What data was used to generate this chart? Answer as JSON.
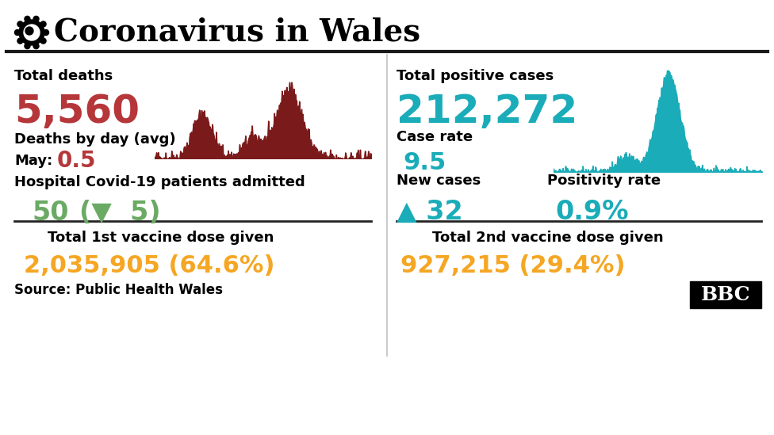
{
  "title": "Coronavirus in Wales",
  "bg_color": "#ffffff",
  "title_color": "#000000",
  "left_panel": {
    "total_deaths_label": "Total deaths",
    "total_deaths_value": "5,560",
    "total_deaths_color": "#b5373a",
    "deaths_by_day_label": "Deaths by day (avg)",
    "may_label": "May:",
    "may_value": "0.5",
    "may_value_color": "#b5373a",
    "hospital_label": "Hospital Covid-19 patients admitted",
    "hospital_value": "50",
    "hospital_value_color": "#6aaa64",
    "hospital_change_text": "(▼  5)",
    "hospital_change_color": "#6aaa64",
    "vaccine1_label": "Total 1st vaccine dose given",
    "vaccine1_value": "2,035,905 (64.6%)",
    "vaccine1_color": "#f5a623"
  },
  "right_panel": {
    "total_cases_label": "Total positive cases",
    "total_cases_value": "212,272",
    "total_cases_color": "#1aacb8",
    "case_rate_label": "Case rate",
    "case_rate_value": "9.5",
    "case_rate_color": "#1aacb8",
    "new_cases_label": "New cases",
    "new_cases_value": "▲ 32",
    "new_cases_color": "#1aacb8",
    "positivity_label": "Positivity rate",
    "positivity_value": "0.9%",
    "positivity_color": "#1aacb8",
    "vaccine2_label": "Total 2nd vaccine dose given",
    "vaccine2_value": "927,215 (29.4%)",
    "vaccine2_color": "#f5a623"
  },
  "source_text": "Source: Public Health Wales",
  "bbc_text": "BBC",
  "death_sparkline_color": "#7b1a1a",
  "cases_sparkline_color": "#1aacb8",
  "label_color": "#000000"
}
